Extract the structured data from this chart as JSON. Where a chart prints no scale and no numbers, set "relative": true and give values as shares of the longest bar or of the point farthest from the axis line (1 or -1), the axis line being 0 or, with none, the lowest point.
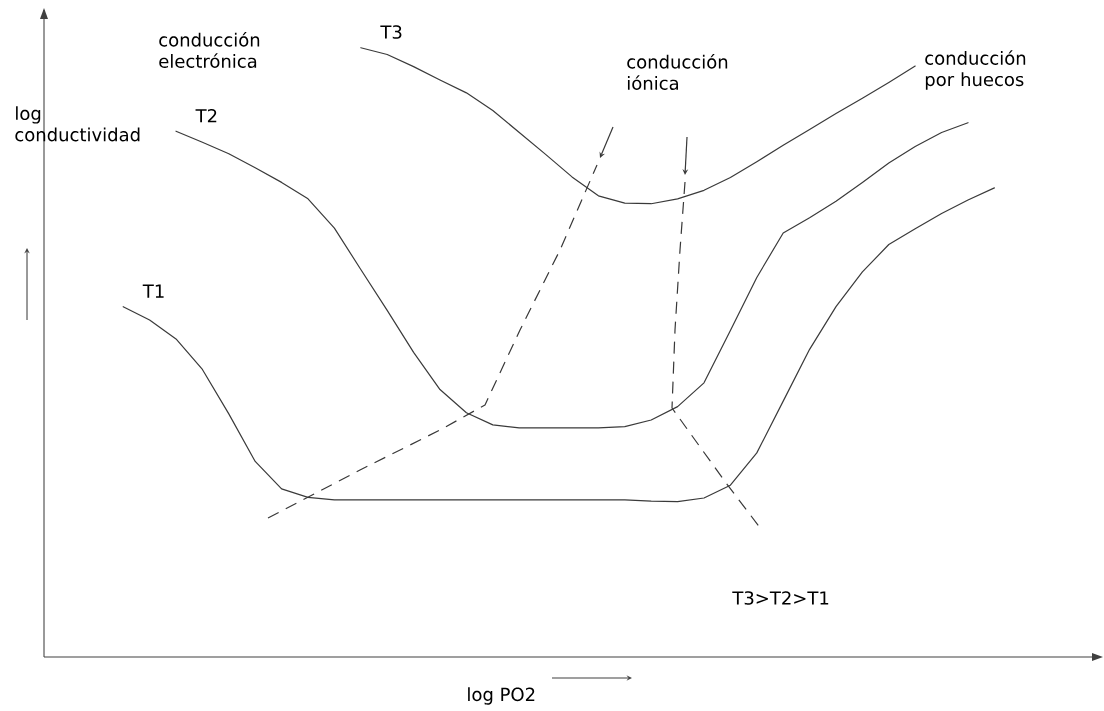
{
  "chart_data": {
    "type": "line",
    "relative": true,
    "xlabel": "log PO2",
    "ylabel": "log conductividad",
    "categories": [
      null,
      null,
      null,
      null,
      null,
      null,
      null,
      null,
      null,
      null,
      null,
      null,
      null,
      null,
      null,
      null,
      null,
      null,
      null,
      null,
      null,
      null,
      null,
      null,
      null,
      null,
      null,
      null,
      null,
      null,
      null,
      null,
      null,
      null,
      null,
      null,
      null,
      null,
      null,
      null,
      null
    ],
    "series": [
      {
        "name": "T1",
        "color": "#3a3a3a",
        "values": [
          null,
          null,
          null,
          0.575,
          0.553,
          0.522,
          0.472,
          0.399,
          0.321,
          0.276,
          0.262,
          0.258,
          0.258,
          0.258,
          0.258,
          0.258,
          0.258,
          0.258,
          0.258,
          0.258,
          0.258,
          0.258,
          0.258,
          0.256,
          0.255,
          0.261,
          0.282,
          0.335,
          0.42,
          0.505,
          0.575,
          0.632,
          0.677,
          0.703,
          0.728,
          0.75,
          0.77,
          null,
          null,
          null,
          null
        ]
      },
      {
        "name": "T2",
        "color": "#3a3a3a",
        "values": [
          null,
          null,
          null,
          null,
          null,
          0.863,
          0.845,
          0.826,
          0.803,
          0.779,
          0.752,
          0.704,
          0.636,
          0.569,
          0.5,
          0.439,
          0.401,
          0.381,
          0.376,
          0.376,
          0.376,
          0.376,
          0.378,
          0.389,
          0.411,
          0.45,
          0.536,
          0.623,
          0.696,
          0.721,
          0.748,
          0.779,
          0.811,
          0.838,
          0.861,
          0.877,
          null,
          null,
          null,
          null,
          null
        ]
      },
      {
        "name": "T3",
        "color": "#3a3a3a",
        "values": [
          null,
          null,
          null,
          null,
          null,
          null,
          null,
          null,
          null,
          null,
          null,
          null,
          1.0,
          0.989,
          0.969,
          0.947,
          0.926,
          0.897,
          0.861,
          0.825,
          0.788,
          0.757,
          0.745,
          0.744,
          0.752,
          0.766,
          0.787,
          0.813,
          0.84,
          0.866,
          0.892,
          0.917,
          0.943,
          0.97,
          null,
          null,
          null,
          null,
          null,
          null,
          null
        ]
      }
    ],
    "annotations": [
      "conducción electrónica",
      "conducción iónica",
      "conducción por huecos",
      "T3>T2>T1"
    ]
  }
}
